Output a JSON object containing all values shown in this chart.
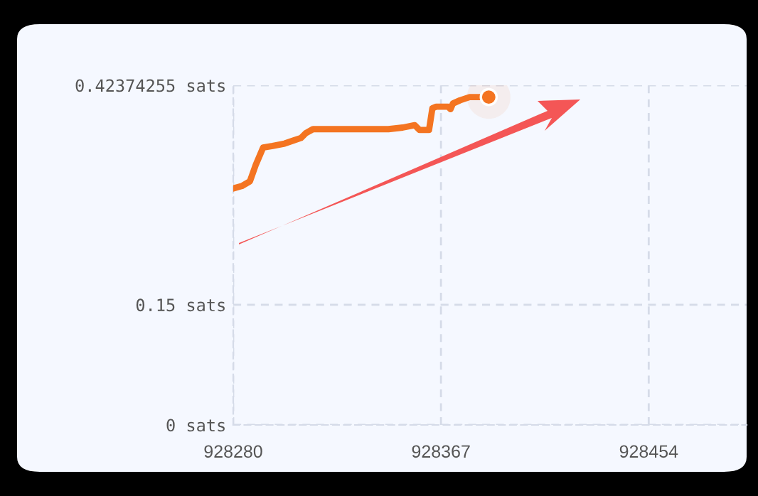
{
  "chart_data": {
    "type": "line",
    "x": [
      928280,
      928283.6,
      928287,
      928289.5,
      928292.5,
      928296.5,
      928301.5,
      928305.4,
      928308.4,
      928310.4,
      928313.4,
      928331,
      928345,
      928351,
      928356,
      928358,
      928362,
      928363.4,
      928365,
      928370,
      928371,
      928372,
      928375,
      928379,
      928387
    ],
    "series": [
      {
        "color": "#f47421",
        "values": [
          0.295,
          0.298,
          0.304,
          0.325,
          0.346,
          0.348,
          0.351,
          0.355,
          0.358,
          0.364,
          0.369,
          0.369,
          0.369,
          0.371,
          0.374,
          0.368,
          0.368,
          0.395,
          0.397,
          0.397,
          0.394,
          0.401,
          0.405,
          0.409,
          0.409
        ]
      }
    ],
    "xlim": [
      928280,
      928495
    ],
    "xticks": [
      928280,
      928367,
      928454
    ],
    "ylim": [
      0,
      0.42374255
    ],
    "yticks": [
      {
        "value": 0,
        "label": "0 sats"
      },
      {
        "value": 0.15,
        "label": "0.15 sats"
      },
      {
        "value": 0.42374255,
        "label": "0.42374255 sats"
      }
    ],
    "grid": true,
    "line_style": "solid"
  }
}
